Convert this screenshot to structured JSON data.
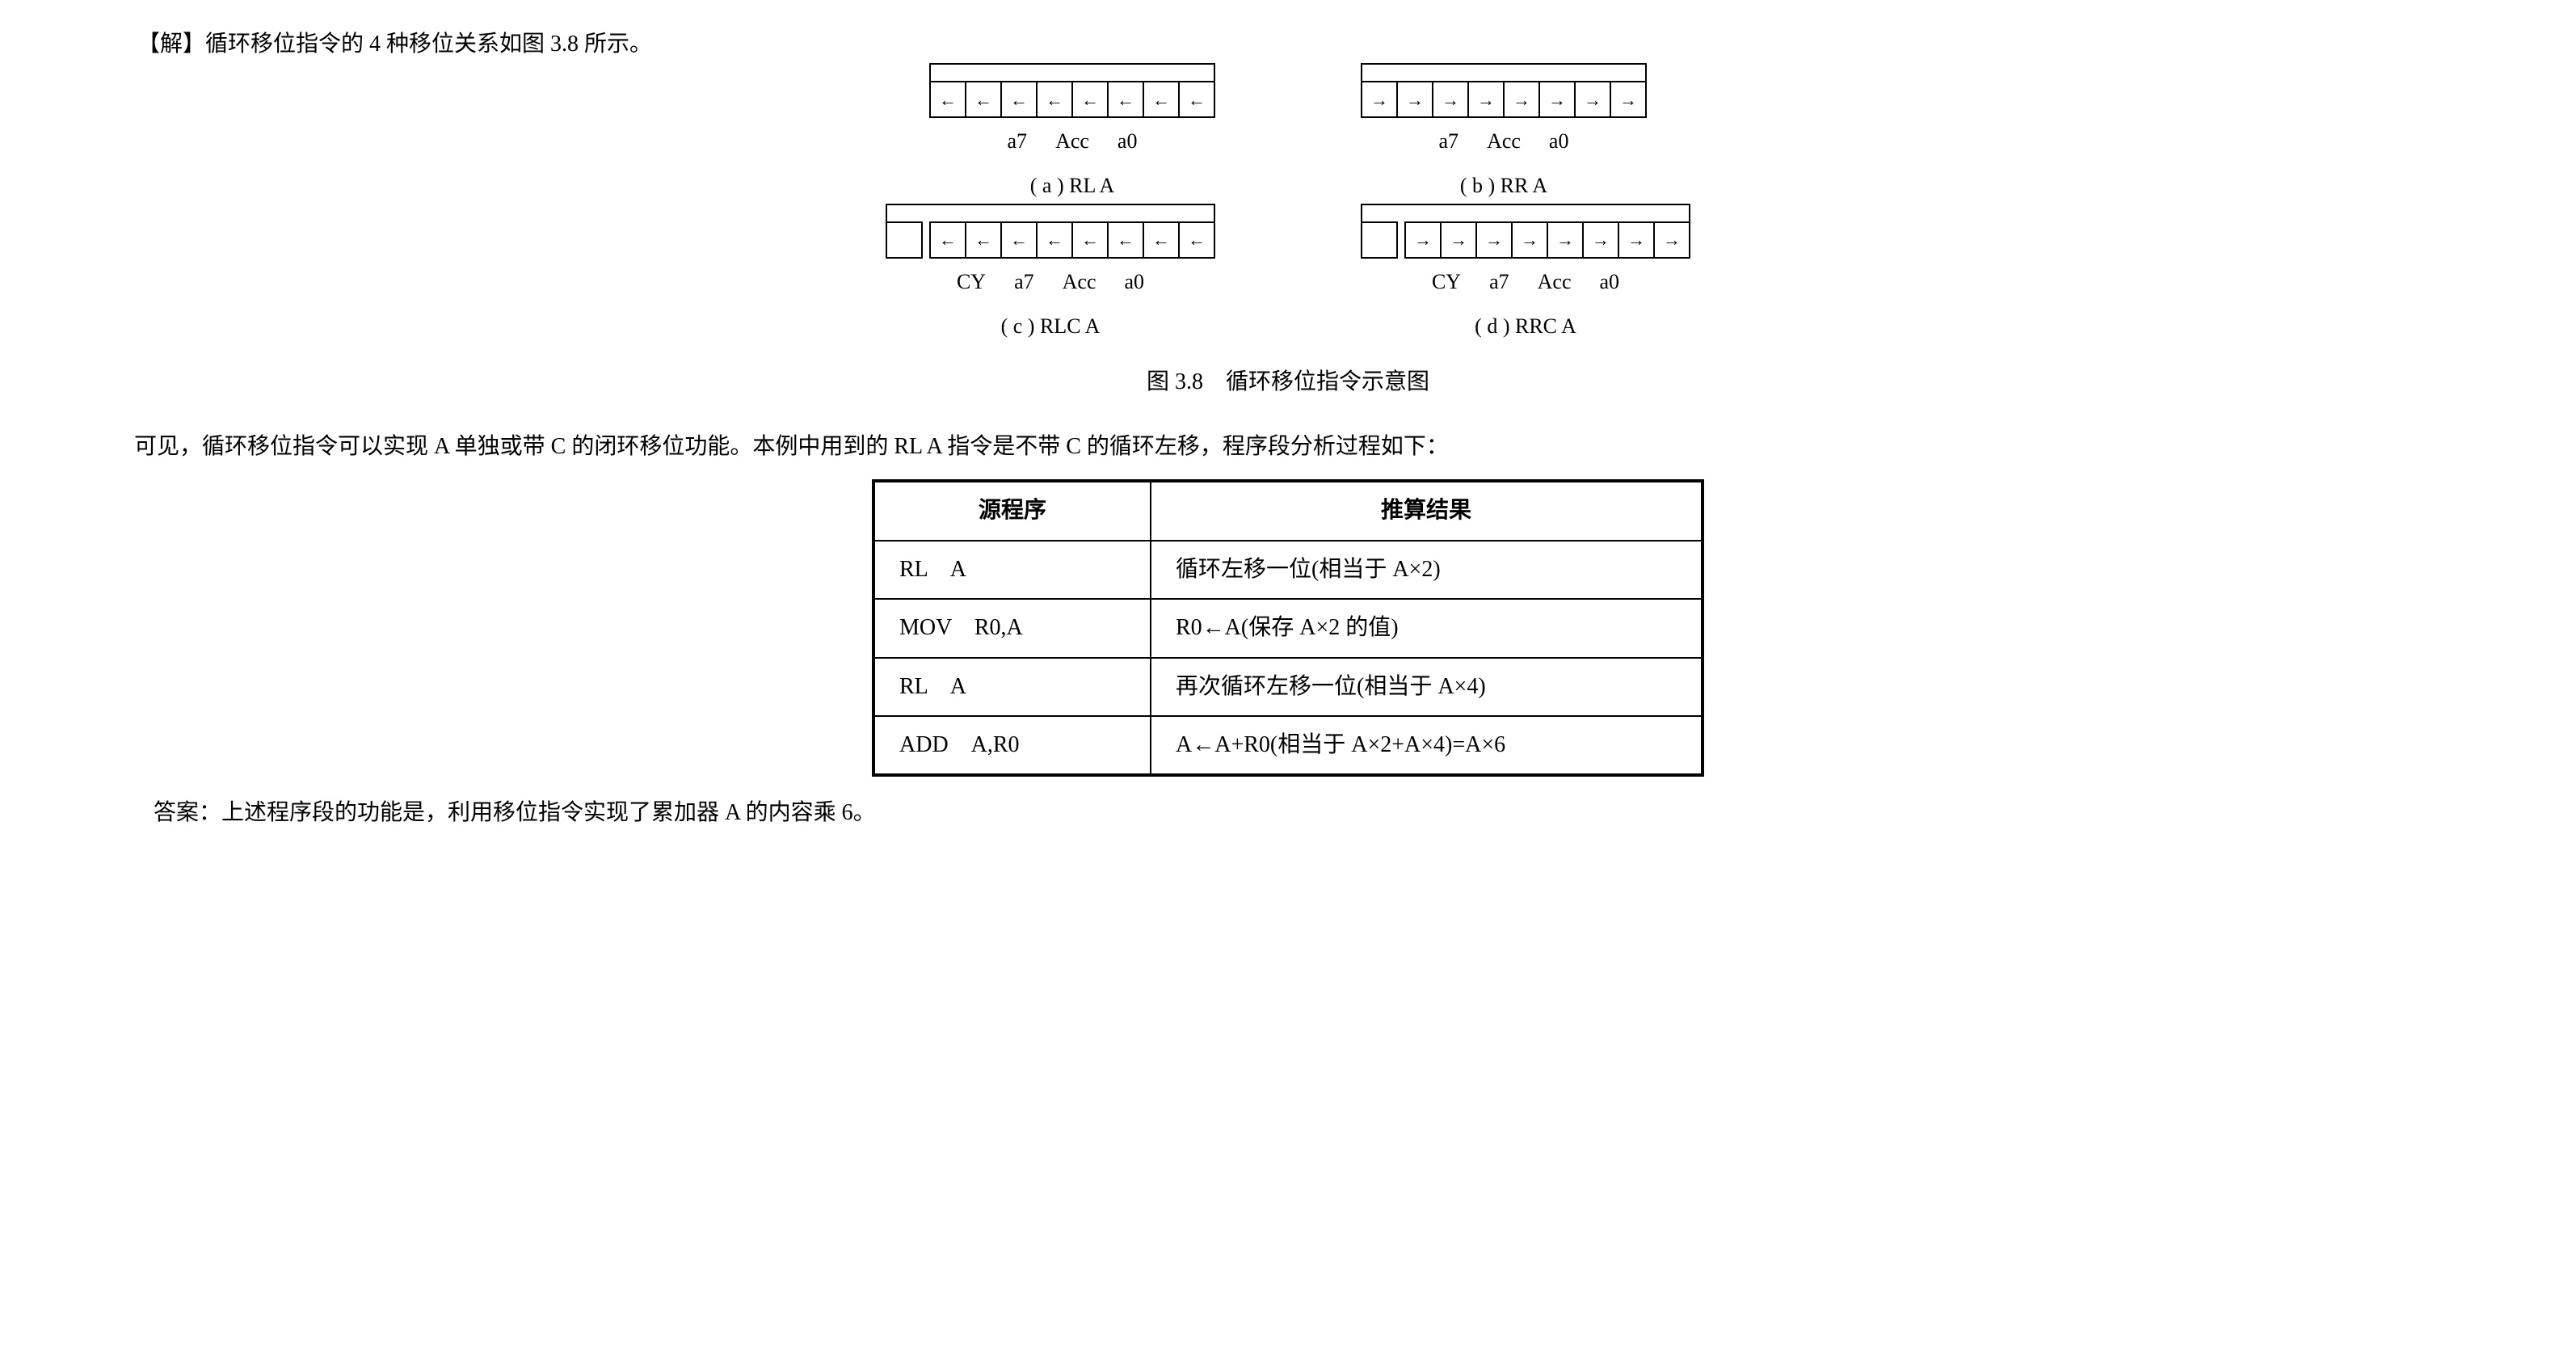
{
  "heading": "【解】循环移位指令的 4 种移位关系如图 3.8 所示。",
  "diagrams": {
    "a": {
      "labels": [
        "a7",
        "Acc",
        "a0"
      ],
      "caption": "( a ) RL  A",
      "arrows": "←"
    },
    "b": {
      "labels": [
        "a7",
        "Acc",
        "a0"
      ],
      "caption": "( b ) RR  A",
      "arrows": "→"
    },
    "c": {
      "labels": [
        "CY",
        "a7",
        "Acc",
        "a0"
      ],
      "caption": "( c ) RLC  A",
      "arrows": "←",
      "has_cy": true
    },
    "d": {
      "labels": [
        "CY",
        "a7",
        "Acc",
        "a0"
      ],
      "caption": "( d ) RRC  A",
      "arrows": "→",
      "has_cy": true
    }
  },
  "fig_caption": "图 3.8　循环移位指令示意图",
  "para1": "可见，循环移位指令可以实现 A 单独或带 C 的闭环移位功能。本例中用到的 RL  A 指令是不带 C 的循环左移，程序段分析过程如下：",
  "table": {
    "headers": [
      "源程序",
      "推算结果"
    ],
    "rows": [
      [
        "RL　A",
        "循环左移一位(相当于 A×2)"
      ],
      [
        "MOV　R0,A",
        "R0←A(保存 A×2 的值)"
      ],
      [
        "RL　A",
        "再次循环左移一位(相当于 A×4)"
      ],
      [
        "ADD　A,R0",
        "A←A+R0(相当于 A×2+A×4)=A×6"
      ]
    ]
  },
  "answer": "答案：上述程序段的功能是，利用移位指令实现了累加器 A 的内容乘 6。",
  "colors": {
    "text": "#000000",
    "background": "#ffffff",
    "border": "#000000"
  },
  "fonts": {
    "body": "SimSun",
    "roman": "Times New Roman",
    "size_body": 28,
    "size_caption": 26
  }
}
